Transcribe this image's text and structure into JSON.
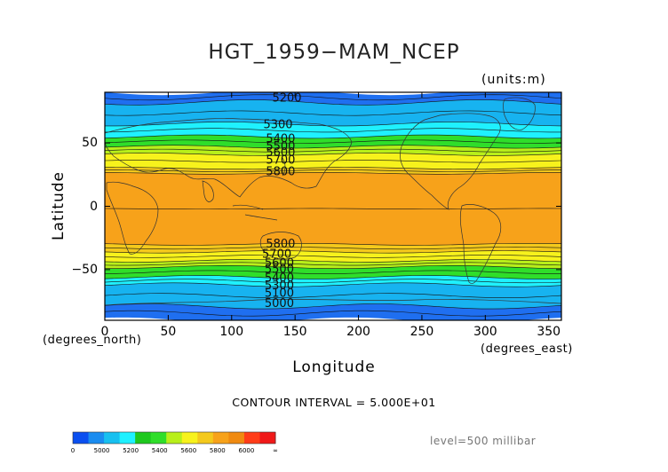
{
  "figure": {
    "title": "HGT_1959−MAM_NCEP",
    "units": "(units:m)",
    "ylabel": "Latitude",
    "xlabel": "Longitude",
    "x_unit_left": "(degrees_north)",
    "x_unit_right": "(degrees_east)",
    "contour_interval": "CONTOUR INTERVAL = 5.000E+01",
    "level": "level=500 millibar"
  },
  "chart_data": {
    "type": "heatmap",
    "title": "HGT_1959−MAM_NCEP",
    "xlabel": "Longitude",
    "ylabel": "Latitude",
    "xlim": [
      0,
      360
    ],
    "ylim": [
      -90,
      90
    ],
    "x_ticks": [
      "0",
      "50",
      "100",
      "150",
      "200",
      "250",
      "300",
      "350"
    ],
    "y_ticks": [
      {
        "value": 50,
        "label": "50"
      },
      {
        "value": 0,
        "label": "0"
      },
      {
        "value": -50,
        "label": "−50"
      }
    ],
    "color_bands": [
      {
        "lat_top": 90,
        "lat_bottom": 82,
        "color": "#1f6ff0"
      },
      {
        "lat_top": 82,
        "lat_bottom": 65,
        "color": "#17b3f0"
      },
      {
        "lat_top": 65,
        "lat_bottom": 55,
        "color": "#1ff1ff"
      },
      {
        "lat_top": 55,
        "lat_bottom": 47,
        "color": "#2fde2a"
      },
      {
        "lat_top": 47,
        "lat_bottom": 41,
        "color": "#b8ef1a"
      },
      {
        "lat_top": 41,
        "lat_bottom": 30,
        "color": "#f7f21c"
      },
      {
        "lat_top": 30,
        "lat_bottom": 26,
        "color": "#f4c91c"
      },
      {
        "lat_top": 26,
        "lat_bottom": -30,
        "color": "#f7a21a"
      },
      {
        "lat_top": -30,
        "lat_bottom": -36,
        "color": "#f4c91c"
      },
      {
        "lat_top": -36,
        "lat_bottom": -43,
        "color": "#f7f21c"
      },
      {
        "lat_top": -43,
        "lat_bottom": -48,
        "color": "#b8ef1a"
      },
      {
        "lat_top": -48,
        "lat_bottom": -56,
        "color": "#2fde2a"
      },
      {
        "lat_top": -56,
        "lat_bottom": -62,
        "color": "#1ff1ff"
      },
      {
        "lat_top": -62,
        "lat_bottom": -79,
        "color": "#17b3f0"
      },
      {
        "lat_top": -79,
        "lat_bottom": -90,
        "color": "#1f6ff0"
      }
    ],
    "contour_labels": [
      {
        "text": "5200",
        "lon": 132,
        "lat": 86
      },
      {
        "text": "5300",
        "lon": 125,
        "lat": 65
      },
      {
        "text": "5400",
        "lon": 127,
        "lat": 54
      },
      {
        "text": "5500",
        "lon": 127,
        "lat": 48
      },
      {
        "text": "5600",
        "lon": 127,
        "lat": 43
      },
      {
        "text": "5700",
        "lon": 127,
        "lat": 37
      },
      {
        "text": "5800",
        "lon": 127,
        "lat": 28
      },
      {
        "text": "5800",
        "lon": 127,
        "lat": -29
      },
      {
        "text": "5700",
        "lon": 124,
        "lat": -37
      },
      {
        "text": "5600",
        "lon": 126,
        "lat": -44
      },
      {
        "text": "5500",
        "lon": 126,
        "lat": -49
      },
      {
        "text": "5400",
        "lon": 126,
        "lat": -56
      },
      {
        "text": "5300",
        "lon": 126,
        "lat": -62
      },
      {
        "text": "5100",
        "lon": 126,
        "lat": -68
      },
      {
        "text": "5000",
        "lon": 126,
        "lat": -76
      }
    ],
    "colorbar": {
      "colors": [
        "#0a4ff0",
        "#1a8cf0",
        "#17c0f0",
        "#1ff1ff",
        "#1ec81e",
        "#2fde2a",
        "#b8ef1a",
        "#f7f21c",
        "#f4c91c",
        "#f7a21a",
        "#f08a10",
        "#ff3c18",
        "#f01818"
      ],
      "labels": [
        "0",
        "5000",
        "5200",
        "5400",
        "5600",
        "5800",
        "6000",
        "∞"
      ]
    }
  }
}
